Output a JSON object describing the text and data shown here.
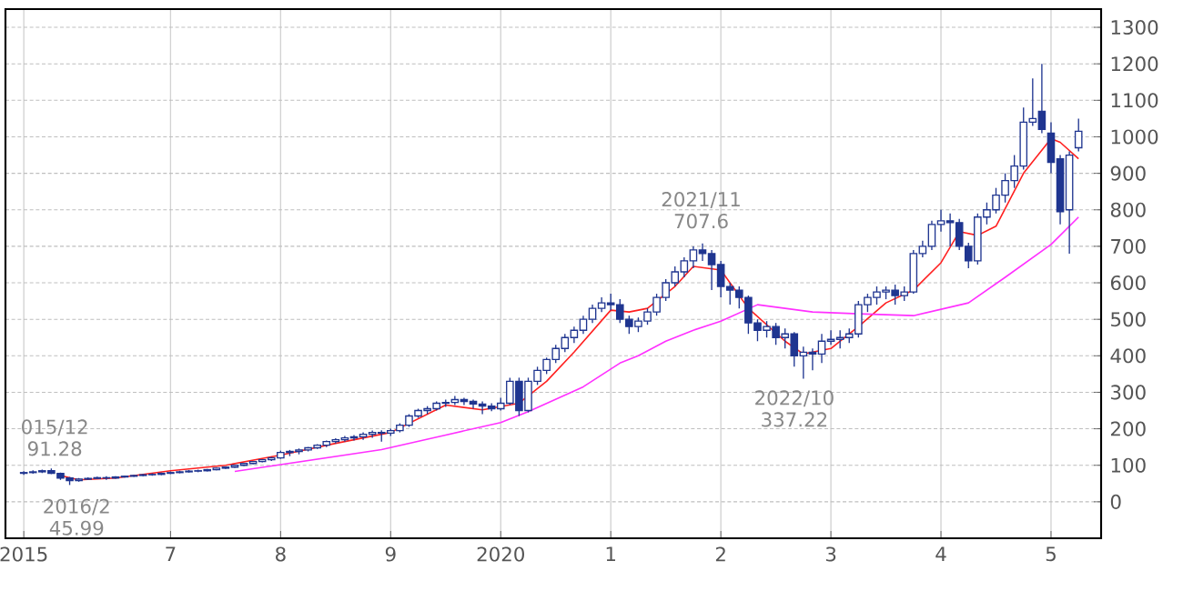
{
  "chart_data": {
    "type": "candlestick",
    "color": "#1f3590",
    "x": [
      "2015-09",
      "2015-10",
      "2015-11",
      "2015-12",
      "2016-01",
      "2016-02",
      "2016-03",
      "2016-04",
      "2016-05",
      "2016-06",
      "2016-07",
      "2016-08",
      "2016-09",
      "2016-10",
      "2016-11",
      "2016-12",
      "2017-01",
      "2017-02",
      "2017-03",
      "2017-04",
      "2017-05",
      "2017-06",
      "2017-07",
      "2017-08",
      "2017-09",
      "2017-10",
      "2017-11",
      "2017-12",
      "2018-01",
      "2018-02",
      "2018-03",
      "2018-04",
      "2018-05",
      "2018-06",
      "2018-07",
      "2018-08",
      "2018-09",
      "2018-10",
      "2018-11",
      "2018-12",
      "2019-01",
      "2019-02",
      "2019-03",
      "2019-04",
      "2019-05",
      "2019-06",
      "2019-07",
      "2019-08",
      "2019-09",
      "2019-10",
      "2019-11",
      "2019-12",
      "2020-01",
      "2020-02",
      "2020-03",
      "2020-04",
      "2020-05",
      "2020-06",
      "2020-07",
      "2020-08",
      "2020-09",
      "2020-10",
      "2020-11",
      "2020-12",
      "2021-01",
      "2021-02",
      "2021-03",
      "2021-04",
      "2021-05",
      "2021-06",
      "2021-07",
      "2021-08",
      "2021-09",
      "2021-10",
      "2021-11",
      "2021-12",
      "2022-01",
      "2022-02",
      "2022-03",
      "2022-04",
      "2022-05",
      "2022-06",
      "2022-07",
      "2022-08",
      "2022-09",
      "2022-10",
      "2022-11",
      "2022-12",
      "2023-01",
      "2023-02",
      "2023-03",
      "2023-04",
      "2023-05",
      "2023-06",
      "2023-07",
      "2023-08",
      "2023-09",
      "2023-10",
      "2023-11",
      "2023-12",
      "2024-01",
      "2024-02",
      "2024-03",
      "2024-04",
      "2024-05",
      "2024-06",
      "2024-07",
      "2024-08",
      "2024-09",
      "2024-10",
      "2024-11",
      "2024-12",
      "2025-01",
      "2025-02",
      "2025-03",
      "2025-04"
    ],
    "ohlc": [
      [
        78,
        84,
        74,
        80
      ],
      [
        80,
        86,
        77,
        82
      ],
      [
        82,
        88,
        79,
        85
      ],
      [
        85,
        91.28,
        76,
        78
      ],
      [
        78,
        80,
        60,
        65
      ],
      [
        65,
        68,
        45.99,
        58
      ],
      [
        58,
        65,
        55,
        62
      ],
      [
        62,
        67,
        60,
        64
      ],
      [
        64,
        69,
        62,
        66
      ],
      [
        66,
        70,
        60,
        65
      ],
      [
        65,
        70,
        63,
        68
      ],
      [
        68,
        72,
        66,
        70
      ],
      [
        70,
        74,
        68,
        72
      ],
      [
        72,
        76,
        70,
        74
      ],
      [
        74,
        78,
        71,
        75
      ],
      [
        75,
        80,
        73,
        78
      ],
      [
        78,
        83,
        76,
        80
      ],
      [
        80,
        85,
        78,
        82
      ],
      [
        82,
        87,
        80,
        84
      ],
      [
        84,
        88,
        81,
        85
      ],
      [
        85,
        90,
        83,
        88
      ],
      [
        88,
        94,
        86,
        92
      ],
      [
        92,
        97,
        90,
        95
      ],
      [
        95,
        102,
        93,
        100
      ],
      [
        100,
        107,
        98,
        105
      ],
      [
        105,
        112,
        103,
        110
      ],
      [
        110,
        117,
        108,
        115
      ],
      [
        115,
        123,
        112,
        120
      ],
      [
        120,
        140,
        118,
        135
      ],
      [
        135,
        142,
        125,
        138
      ],
      [
        138,
        146,
        130,
        142
      ],
      [
        142,
        150,
        138,
        148
      ],
      [
        148,
        158,
        145,
        155
      ],
      [
        155,
        168,
        150,
        165
      ],
      [
        165,
        174,
        160,
        170
      ],
      [
        170,
        180,
        165,
        175
      ],
      [
        175,
        183,
        168,
        178
      ],
      [
        178,
        190,
        170,
        185
      ],
      [
        185,
        195,
        175,
        190
      ],
      [
        190,
        196,
        165,
        188
      ],
      [
        188,
        200,
        180,
        195
      ],
      [
        195,
        215,
        190,
        210
      ],
      [
        210,
        240,
        205,
        235
      ],
      [
        235,
        255,
        230,
        250
      ],
      [
        250,
        262,
        240,
        255
      ],
      [
        255,
        275,
        250,
        270
      ],
      [
        270,
        280,
        260,
        272
      ],
      [
        272,
        290,
        265,
        280
      ],
      [
        280,
        285,
        265,
        275
      ],
      [
        275,
        280,
        255,
        268
      ],
      [
        268,
        275,
        240,
        262
      ],
      [
        262,
        270,
        248,
        255
      ],
      [
        255,
        285,
        250,
        270
      ],
      [
        270,
        340,
        265,
        330
      ],
      [
        330,
        340,
        235,
        250
      ],
      [
        250,
        340,
        245,
        330
      ],
      [
        330,
        370,
        320,
        360
      ],
      [
        360,
        395,
        350,
        390
      ],
      [
        390,
        430,
        380,
        420
      ],
      [
        420,
        460,
        410,
        450
      ],
      [
        450,
        480,
        435,
        470
      ],
      [
        470,
        510,
        460,
        500
      ],
      [
        500,
        540,
        490,
        530
      ],
      [
        530,
        560,
        520,
        545
      ],
      [
        545,
        570,
        525,
        540
      ],
      [
        540,
        555,
        490,
        500
      ],
      [
        500,
        510,
        460,
        480
      ],
      [
        480,
        505,
        465,
        495
      ],
      [
        495,
        530,
        485,
        520
      ],
      [
        520,
        570,
        510,
        560
      ],
      [
        560,
        610,
        550,
        600
      ],
      [
        600,
        645,
        590,
        630
      ],
      [
        630,
        670,
        615,
        660
      ],
      [
        660,
        700,
        640,
        690
      ],
      [
        690,
        707.6,
        660,
        680
      ],
      [
        680,
        690,
        580,
        650
      ],
      [
        650,
        660,
        560,
        590
      ],
      [
        590,
        600,
        540,
        580
      ],
      [
        580,
        590,
        530,
        560
      ],
      [
        560,
        565,
        460,
        490
      ],
      [
        490,
        500,
        440,
        470
      ],
      [
        470,
        495,
        450,
        480
      ],
      [
        480,
        490,
        430,
        450
      ],
      [
        450,
        475,
        420,
        460
      ],
      [
        460,
        465,
        370,
        400
      ],
      [
        400,
        425,
        337.22,
        410
      ],
      [
        410,
        420,
        360,
        405
      ],
      [
        405,
        460,
        380,
        440
      ],
      [
        440,
        470,
        430,
        445
      ],
      [
        445,
        470,
        420,
        450
      ],
      [
        450,
        475,
        435,
        460
      ],
      [
        460,
        550,
        450,
        540
      ],
      [
        540,
        570,
        520,
        560
      ],
      [
        560,
        590,
        540,
        575
      ],
      [
        575,
        590,
        555,
        580
      ],
      [
        580,
        595,
        540,
        565
      ],
      [
        565,
        590,
        550,
        575
      ],
      [
        575,
        690,
        570,
        680
      ],
      [
        680,
        715,
        670,
        700
      ],
      [
        700,
        770,
        690,
        760
      ],
      [
        760,
        800,
        740,
        770
      ],
      [
        770,
        790,
        700,
        765
      ],
      [
        765,
        775,
        690,
        700
      ],
      [
        700,
        710,
        640,
        660
      ],
      [
        660,
        790,
        650,
        780
      ],
      [
        780,
        820,
        760,
        800
      ],
      [
        800,
        860,
        790,
        840
      ],
      [
        840,
        900,
        820,
        880
      ],
      [
        880,
        950,
        860,
        920
      ],
      [
        920,
        1080,
        910,
        1040
      ],
      [
        1040,
        1160,
        1030,
        1050
      ],
      [
        1070,
        1200,
        1010,
        1020
      ],
      [
        1010,
        1040,
        900,
        930
      ],
      [
        940,
        950,
        760,
        795
      ],
      [
        800,
        960,
        680,
        950
      ],
      [
        970,
        1050,
        960,
        1015
      ]
    ],
    "series": [
      {
        "type": "line",
        "color": "#ff2020",
        "x": [
          "2016-01",
          "2016-03",
          "2016-07",
          "2017-01",
          "2017-07",
          "2018-01",
          "2018-07",
          "2019-01",
          "2019-07",
          "2019-11",
          "2020-03",
          "2020-06",
          "2020-09",
          "2021-01",
          "2021-03",
          "2021-05",
          "2021-08",
          "2021-10",
          "2022-01",
          "2022-04",
          "2022-08",
          "2022-10",
          "2023-01",
          "2023-04",
          "2023-07",
          "2023-10",
          "2024-01",
          "2024-03",
          "2024-05",
          "2024-07",
          "2024-10",
          "2025-01",
          "2025-02",
          "2025-04"
        ],
        "values": [
          72,
          60,
          65,
          85,
          100,
          128,
          160,
          190,
          265,
          252,
          270,
          330,
          410,
          525,
          520,
          530,
          590,
          645,
          635,
          530,
          440,
          405,
          420,
          480,
          545,
          580,
          655,
          740,
          730,
          755,
          900,
          995,
          985,
          940
        ]
      },
      {
        "type": "line",
        "color": "#ff30ff",
        "x": [
          "2017-08",
          "2017-12",
          "2018-12",
          "2019-07",
          "2020-01",
          "2020-04",
          "2020-10",
          "2021-02",
          "2021-04",
          "2021-07",
          "2021-10",
          "2022-01",
          "2022-05",
          "2022-11",
          "2023-04",
          "2023-10",
          "2024-04",
          "2024-08",
          "2025-01",
          "2025-04"
        ],
        "values": [
          83,
          98,
          143,
          183,
          217,
          247,
          315,
          380,
          400,
          440,
          470,
          495,
          540,
          520,
          515,
          510,
          545,
          615,
          705,
          780
        ]
      }
    ],
    "xlim": [
      "2015-07-01",
      "2025-06-15"
    ],
    "xticks": [
      {
        "value": "2015-09-01",
        "label": "2015"
      },
      {
        "value": "2017-01-01",
        "label": "7"
      },
      {
        "value": "2018-01-01",
        "label": "8"
      },
      {
        "value": "2019-01-01",
        "label": "9"
      },
      {
        "value": "2020-01-01",
        "label": "2020"
      },
      {
        "value": "2021-01-01",
        "label": "1"
      },
      {
        "value": "2022-01-01",
        "label": "2"
      },
      {
        "value": "2023-01-01",
        "label": "3"
      },
      {
        "value": "2024-01-01",
        "label": "4"
      },
      {
        "value": "2025-01-01",
        "label": "5"
      }
    ],
    "ylim": [
      -100,
      1350
    ],
    "yticks": [
      0,
      100,
      200,
      300,
      400,
      500,
      600,
      700,
      800,
      900,
      1000,
      1100,
      1200,
      1300
    ],
    "grid": true,
    "annotations": [
      "015/12 91.28",
      "2016/2 45.99",
      "2021/11 707.6",
      "2022/10 337.22"
    ]
  }
}
